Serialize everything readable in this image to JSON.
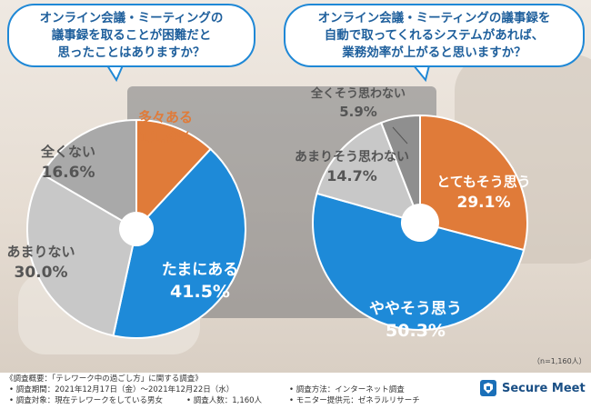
{
  "colors": {
    "orange": "#e07b39",
    "blue": "#1e8ad8",
    "lightgray": "#c8c8c8",
    "midgray": "#a9a9a9",
    "darkgray": "#8f8f8f",
    "bubble_border": "#1f88d6",
    "bubble_text": "#1e5f9c"
  },
  "left_question": [
    "オンライン会議・ミーティングの",
    "議事録を取ることが困難だと",
    "思ったことはありますか？"
  ],
  "right_question": [
    "オンライン会議・ミーティングの議事録を",
    "自動で取ってくれるシステムがあれば、",
    "業務効率が上がると思いますか？"
  ],
  "chart_data": [
    {
      "type": "pie",
      "title": "オンライン会議・ミーティングの議事録を取ることが困難だと思ったことはありますか？",
      "unit": "%",
      "slices": [
        {
          "label": "多々ある",
          "value": 11.9,
          "color": "#e07b39"
        },
        {
          "label": "たまにある",
          "value": 41.5,
          "color": "#1e8ad8"
        },
        {
          "label": "あまりない",
          "value": 30.0,
          "color": "#c8c8c8"
        },
        {
          "label": "全くない",
          "value": 16.6,
          "color": "#a9a9a9"
        }
      ]
    },
    {
      "type": "pie",
      "title": "オンライン会議・ミーティングの議事録を自動で取ってくれるシステムがあれば、業務効率が上がると思いますか？",
      "unit": "%",
      "slices": [
        {
          "label": "とてもそう思う",
          "value": 29.1,
          "color": "#e07b39"
        },
        {
          "label": "ややそう思う",
          "value": 50.3,
          "color": "#1e8ad8"
        },
        {
          "label": "あまりそう思わない",
          "value": 14.7,
          "color": "#c8c8c8"
        },
        {
          "label": "全くそう思わない",
          "value": 5.9,
          "color": "#8f8f8f"
        }
      ]
    }
  ],
  "sample_size": "（n=1,160人）",
  "footer": {
    "title": "《調査概要：「テレワーク中の過ごし方」に関する調査》",
    "period": "• 調査期間：2021年12月17日（金）～2021年12月22日（水）",
    "target": "• 調査対象：現在テレワークをしている男女",
    "count": "• 調査人数：1,160人",
    "method": "• 調査方法：インターネット調査",
    "provider": "• モニター提供元：ゼネラルリサーチ"
  },
  "logo": {
    "text": "Secure Meet"
  }
}
